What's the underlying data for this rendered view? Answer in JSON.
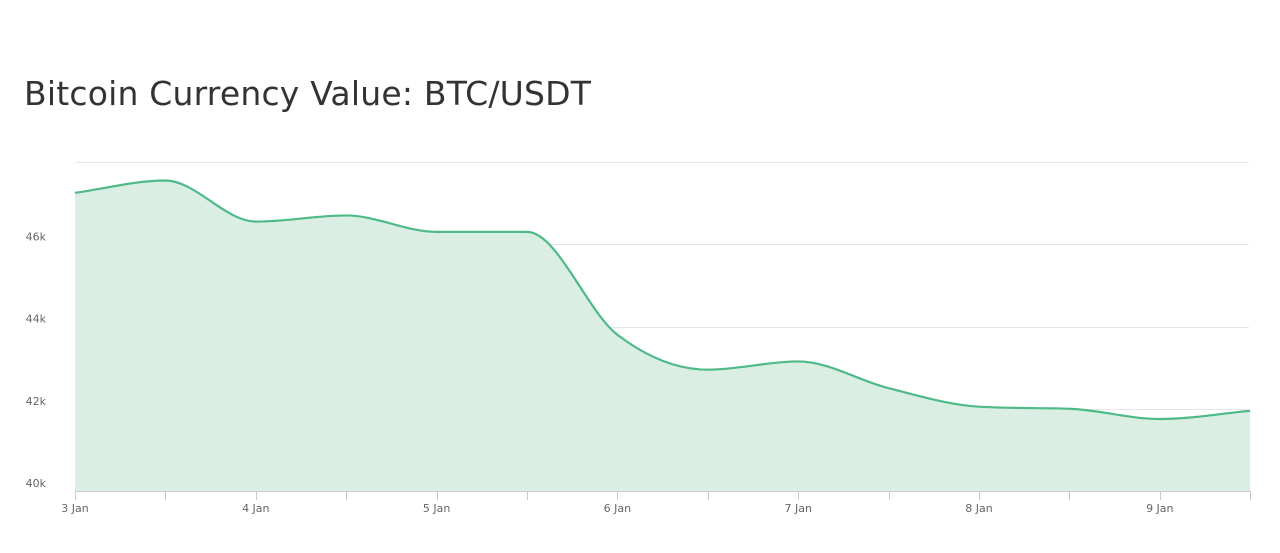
{
  "chart_data": {
    "type": "area",
    "title": "Bitcoin Currency Value: BTC/USDT",
    "xlabel": "",
    "ylabel": "",
    "x_range": [
      "2024-01-03",
      "2024-01-09 12:00"
    ],
    "ylim": [
      40000,
      48000
    ],
    "y_ticks": [
      {
        "value": 40000,
        "label": "40k"
      },
      {
        "value": 42000,
        "label": "42k"
      },
      {
        "value": 44000,
        "label": "44k"
      },
      {
        "value": 46000,
        "label": "46k"
      }
    ],
    "x_ticks": [
      {
        "date": "2024-01-03",
        "label": "3 Jan"
      },
      {
        "date": "2024-01-04",
        "label": "4 Jan"
      },
      {
        "date": "2024-01-05",
        "label": "5 Jan"
      },
      {
        "date": "2024-01-06",
        "label": "6 Jan"
      },
      {
        "date": "2024-01-07",
        "label": "7 Jan"
      },
      {
        "date": "2024-01-08",
        "label": "8 Jan"
      },
      {
        "date": "2024-01-09",
        "label": "9 Jan"
      }
    ],
    "grid": true,
    "series": [
      {
        "points": [
          {
            "x": "2024-01-03 00:00",
            "y": 47250
          },
          {
            "x": "2024-01-03 12:00",
            "y": 47550
          },
          {
            "x": "2024-01-04 00:00",
            "y": 46550
          },
          {
            "x": "2024-01-04 12:00",
            "y": 46700
          },
          {
            "x": "2024-01-05 00:00",
            "y": 46300
          },
          {
            "x": "2024-01-05 12:00",
            "y": 46300
          },
          {
            "x": "2024-01-06 00:00",
            "y": 43800
          },
          {
            "x": "2024-01-06 12:00",
            "y": 42950
          },
          {
            "x": "2024-01-07 00:00",
            "y": 43150
          },
          {
            "x": "2024-01-07 12:00",
            "y": 42500
          },
          {
            "x": "2024-01-08 00:00",
            "y": 42050
          },
          {
            "x": "2024-01-08 12:00",
            "y": 42000
          },
          {
            "x": "2024-01-09 00:00",
            "y": 41750
          },
          {
            "x": "2024-01-09 12:00",
            "y": 41950
          }
        ]
      }
    ]
  },
  "colors": {
    "line": "#4dba87",
    "fill": "#daeee4",
    "grid": "#e6e6e6",
    "axis": "#cccccc",
    "title": "#333333",
    "tick_label": "#666666"
  }
}
